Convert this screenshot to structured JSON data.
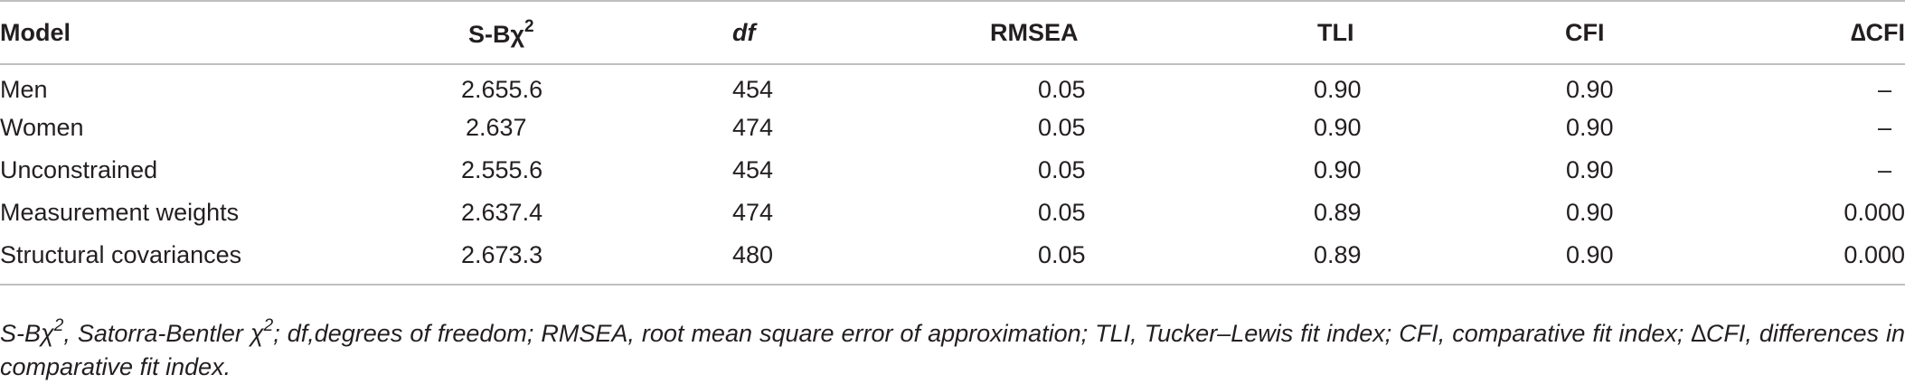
{
  "table": {
    "headers": {
      "model": "Model",
      "sb_prefix": "S-Bχ",
      "sb_sup": "2",
      "df": "df",
      "rmsea": "RMSEA",
      "tli": "TLI",
      "cfi": "CFI",
      "dcfi": "∆CFI"
    },
    "rows": [
      {
        "model": "Men",
        "sb": "2.655.6",
        "df": "454",
        "rmsea": "0.05",
        "tli": "0.90",
        "cfi": "0.90",
        "dcfi": "–"
      },
      {
        "model": "Women",
        "sb": "2.637",
        "df": "474",
        "rmsea": "0.05",
        "tli": "0.90",
        "cfi": "0.90",
        "dcfi": "–"
      },
      {
        "model": "Unconstrained",
        "sb": "2.555.6",
        "df": "454",
        "rmsea": "0.05",
        "tli": "0.90",
        "cfi": "0.90",
        "dcfi": "–"
      },
      {
        "model": "Measurement weights",
        "sb": "2.637.4",
        "df": "474",
        "rmsea": "0.05",
        "tli": "0.89",
        "cfi": "0.90",
        "dcfi": "0.000"
      },
      {
        "model": "Structural covariances",
        "sb": "2.673.3",
        "df": "480",
        "rmsea": "0.05",
        "tli": "0.89",
        "cfi": "0.90",
        "dcfi": "0.000"
      }
    ]
  },
  "footnote": {
    "part1": "S-Bχ",
    "sup1": "2",
    "part2": ", Satorra-Bentler χ",
    "sup2": "2",
    "part3": "; df,degrees of freedom; RMSEA, root mean square error of approximation; TLI, Tucker–Lewis fit index; CFI, comparative fit index; ∆CFI, differences in comparative fit index."
  }
}
